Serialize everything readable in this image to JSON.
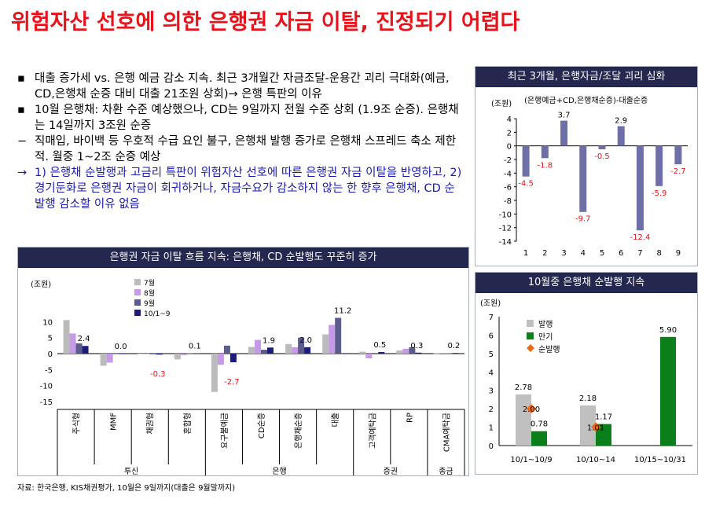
{
  "title": "위험자산 선호에 의한 은행권 자금 이탈, 진정되기 어렵다",
  "bullets": [
    {
      "marker": "▪",
      "text": "대출 증가세 vs. 은행 예금 감소 지속. 최근 3개월간 자금조달-운용간 괴리 극대화(예금, CD,은행채 순증 대비 대출 21조원 상회)→ 은행 특판의 이유"
    },
    {
      "marker": "▪",
      "text": "10월 은행채: 차환 수준 예상했으나, CD는 9일까지 전월 수준 상회 (1.9조 순증). 은행채는 14일까지 3조원 순증"
    },
    {
      "marker": "−",
      "text": "직매입, 바이백 등 우호적 수급 요인 불구, 은행채 발행 증가로 은행채 스프레드 축소 제한적. 월중 1~2조 순증 예상"
    },
    {
      "marker": "→",
      "text": "1) 은행채 순발행과 고금리 특판이 위험자산 선호에 따른 은행권 자금 이탈을 반영하고, 2) 경기둔화로 은행권 자금이 회귀하거나, 자금수요가 감소하지 않는 한 향후 은행채, CD 순발행 감소할 이유 없음"
    }
  ],
  "source": "자료: 한국은행, KIS채권평가, 10월은 9일까지(대출은 9월말까지)",
  "chart_data": [
    {
      "type": "bar",
      "title": "최근 3개월, 은행자금/조달 괴리 심화",
      "subtitle": "(은행예금+CD,은행채순증)-대출순증",
      "ylabel": "(조원)",
      "ylim": [
        -14,
        4
      ],
      "yticks": [
        4,
        2,
        0,
        -2,
        -4,
        -6,
        -8,
        -10,
        -12,
        -14
      ],
      "categories": [
        "1",
        "2",
        "3",
        "4",
        "5",
        "6",
        "7",
        "8",
        "9"
      ],
      "values": [
        -4.5,
        -1.8,
        3.7,
        -9.7,
        -0.5,
        2.9,
        -12.4,
        -5.9,
        -2.7
      ],
      "labels": [
        "-4.5",
        "-1.8",
        "3.7",
        "-9.7",
        "-0.5",
        "2.9",
        "-12.4",
        "-5.9",
        "-2.7"
      ],
      "color": "#6e6fa6"
    },
    {
      "type": "bar",
      "title": "은행권 자금 이탈 흐름 지속: 은행채, CD 순발행도 꾸준히 증가",
      "ylabel": "(조원)",
      "ylim": [
        -15,
        15
      ],
      "yticks": [
        10,
        5,
        0,
        -5,
        -10,
        -15
      ],
      "categories": [
        "주식형",
        "MMF",
        "채권형",
        "혼합형",
        "요구불예금",
        "CD순증",
        "은행채순증",
        "대출",
        "고객예탁금",
        "RP",
        "CMA예탁금"
      ],
      "groups": [
        {
          "name": "투신",
          "span": [
            0,
            3
          ]
        },
        {
          "name": "은행",
          "span": [
            4,
            7
          ]
        },
        {
          "name": "증권",
          "span": [
            8,
            9
          ]
        },
        {
          "name": "종금",
          "span": [
            10,
            10
          ]
        }
      ],
      "series": [
        {
          "name": "7월",
          "color": "#bbbbbb",
          "values": [
            10.5,
            -3.8,
            0,
            -1.8,
            -12,
            2.1,
            3.0,
            6.0,
            0.6,
            1.0,
            0.1
          ]
        },
        {
          "name": "8월",
          "color": "#c59be8",
          "values": [
            6.3,
            -2.8,
            0,
            -0.5,
            -3.5,
            4.3,
            2.0,
            9.0,
            -1.5,
            1.5,
            0.2
          ]
        },
        {
          "name": "9월",
          "color": "#5b5b8d",
          "values": [
            3.2,
            0,
            -0.2,
            0.1,
            2.5,
            1.2,
            5.0,
            11.2,
            0.2,
            2.0,
            0.1
          ]
        },
        {
          "name": "10/1~9",
          "color": "#1c1c7a",
          "values": [
            2.4,
            0.0,
            -0.3,
            0.1,
            -2.7,
            1.9,
            2.0,
            0,
            0.5,
            0.3,
            0.2
          ]
        }
      ],
      "labels": [
        {
          "text": "2.4",
          "cat": 0,
          "value": 2.4,
          "color": "#000000"
        },
        {
          "text": "0.0",
          "cat": 1,
          "value": 0.0,
          "color": "#000000"
        },
        {
          "text": "-0.3",
          "cat": 2,
          "value": -0.3,
          "color": "#e8131b"
        },
        {
          "text": "0.1",
          "cat": 3,
          "value": 0.1,
          "color": "#000000"
        },
        {
          "text": "-2.7",
          "cat": 4,
          "value": -2.7,
          "color": "#e8131b"
        },
        {
          "text": "1.9",
          "cat": 5,
          "value": 1.9,
          "color": "#000000"
        },
        {
          "text": "2.0",
          "cat": 6,
          "value": 2.0,
          "color": "#000000"
        },
        {
          "text": "11.2",
          "cat": 7,
          "value": 11.2,
          "color": "#000000"
        },
        {
          "text": "0.5",
          "cat": 8,
          "value": 0.5,
          "color": "#000000"
        },
        {
          "text": "0.3",
          "cat": 9,
          "value": 0.3,
          "color": "#000000"
        },
        {
          "text": "0.2",
          "cat": 10,
          "value": 0.2,
          "color": "#000000"
        }
      ],
      "legend": "top-left"
    },
    {
      "type": "bar",
      "title": "10월중 은행채 순발행 지속",
      "ylabel": "(조원)",
      "ylim": [
        0,
        7
      ],
      "yticks": [
        7,
        6,
        5,
        4,
        3,
        2,
        1,
        0
      ],
      "categories": [
        "10/1~10/9",
        "10/10~14",
        "10/15~10/31"
      ],
      "series": [
        {
          "name": "발행",
          "color": "#c0c0c0",
          "values": [
            2.78,
            2.18,
            null
          ],
          "labels": [
            "2.78",
            "2.18",
            null
          ]
        },
        {
          "name": "만기",
          "color": "#0b7f1a",
          "values": [
            0.78,
            1.17,
            5.9
          ],
          "labels": [
            "0.78",
            "1.17",
            "5.90"
          ]
        },
        {
          "name": "순발행",
          "color": "#ec6a13",
          "marker": "diamond",
          "values": [
            2.0,
            1.01,
            null
          ],
          "labels": [
            "2.00",
            "1.01",
            null
          ]
        }
      ],
      "legend": "top-left"
    }
  ]
}
